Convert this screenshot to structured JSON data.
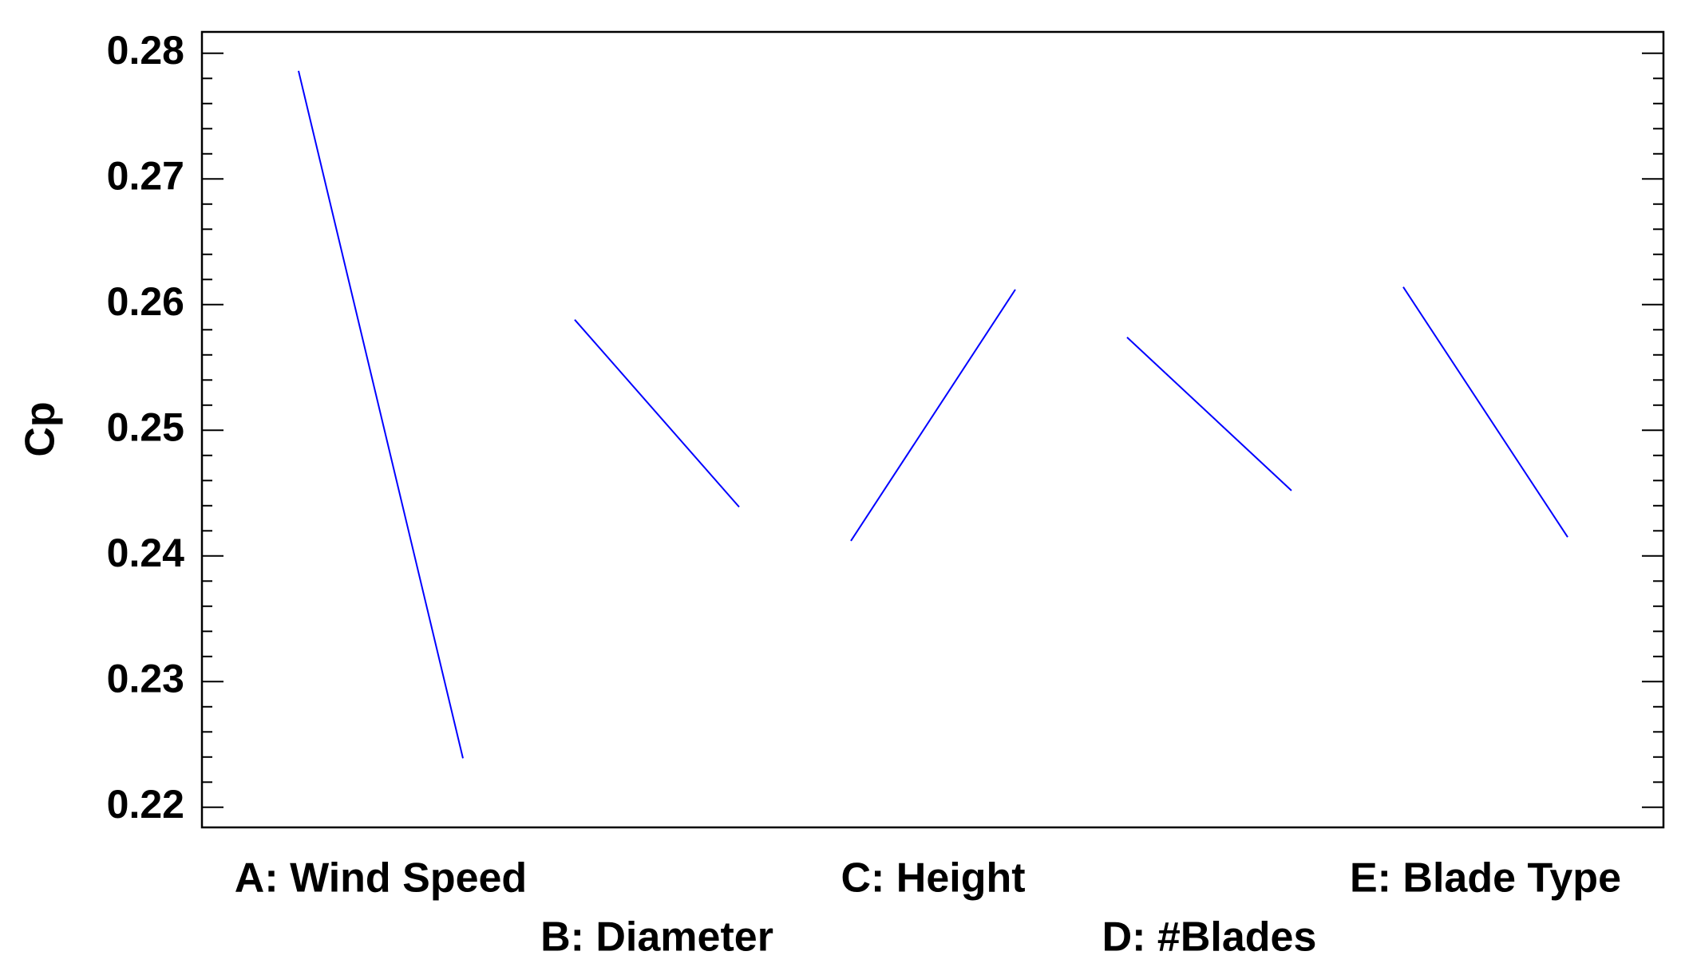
{
  "chart_data": {
    "type": "main-effects",
    "y_label": "Cp",
    "color": "#0000ff",
    "ylim": [
      0.2184,
      0.2817
    ],
    "yticks": [
      0.22,
      0.23,
      0.24,
      0.25,
      0.26,
      0.27,
      0.28
    ],
    "factors": [
      {
        "name": "A: Wind Speed",
        "values": [
          0.2786,
          0.2239
        ]
      },
      {
        "name": "B: Diameter",
        "values": [
          0.2588,
          0.2439
        ]
      },
      {
        "name": "C: Height",
        "values": [
          0.2412,
          0.2612
        ]
      },
      {
        "name": "D: #Blades",
        "values": [
          0.2574,
          0.2452
        ]
      },
      {
        "name": "E: Blade Type",
        "values": [
          0.2614,
          0.2415
        ]
      }
    ]
  }
}
